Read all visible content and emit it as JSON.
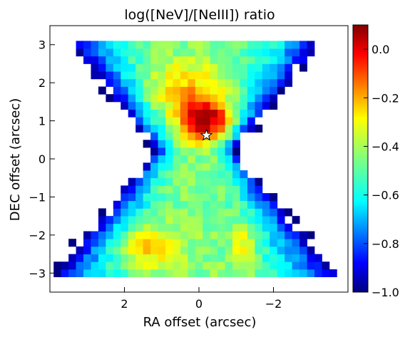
{
  "chart_data": {
    "type": "heatmap",
    "title": "log([NeV]/[NeIII]) ratio",
    "xlabel": "RA offset (arcsec)",
    "ylabel": "DEC offset (arcsec)",
    "xlim": [
      4.0,
      -4.0
    ],
    "ylim": [
      -3.5,
      3.5
    ],
    "xticks": [
      2,
      0,
      -2
    ],
    "xtick_labels": [
      "2",
      "0",
      "−2"
    ],
    "yticks": [
      -3,
      -2,
      -1,
      0,
      1,
      2,
      3
    ],
    "ytick_labels": [
      "−3",
      "−2",
      "−1",
      "0",
      "1",
      "2",
      "3"
    ],
    "colorbar": {
      "colormap": "jet",
      "range": [
        -1.0,
        0.1
      ],
      "ticks": [
        0.0,
        -0.2,
        -0.4,
        -0.6,
        -0.8,
        -1.0
      ],
      "tick_labels": [
        "0.0",
        "−0.2",
        "−0.4",
        "−0.6",
        "−0.8",
        "−1.0"
      ]
    },
    "pixel_size_arcsec": 0.2,
    "ra_range_of_map": [
      3.8,
      -3.6
    ],
    "dec_range_of_map": [
      -3.2,
      3.2
    ],
    "nucleus_marker": {
      "ra": -0.2,
      "dec": 0.62,
      "symbol": "white star"
    },
    "grid": false
  }
}
